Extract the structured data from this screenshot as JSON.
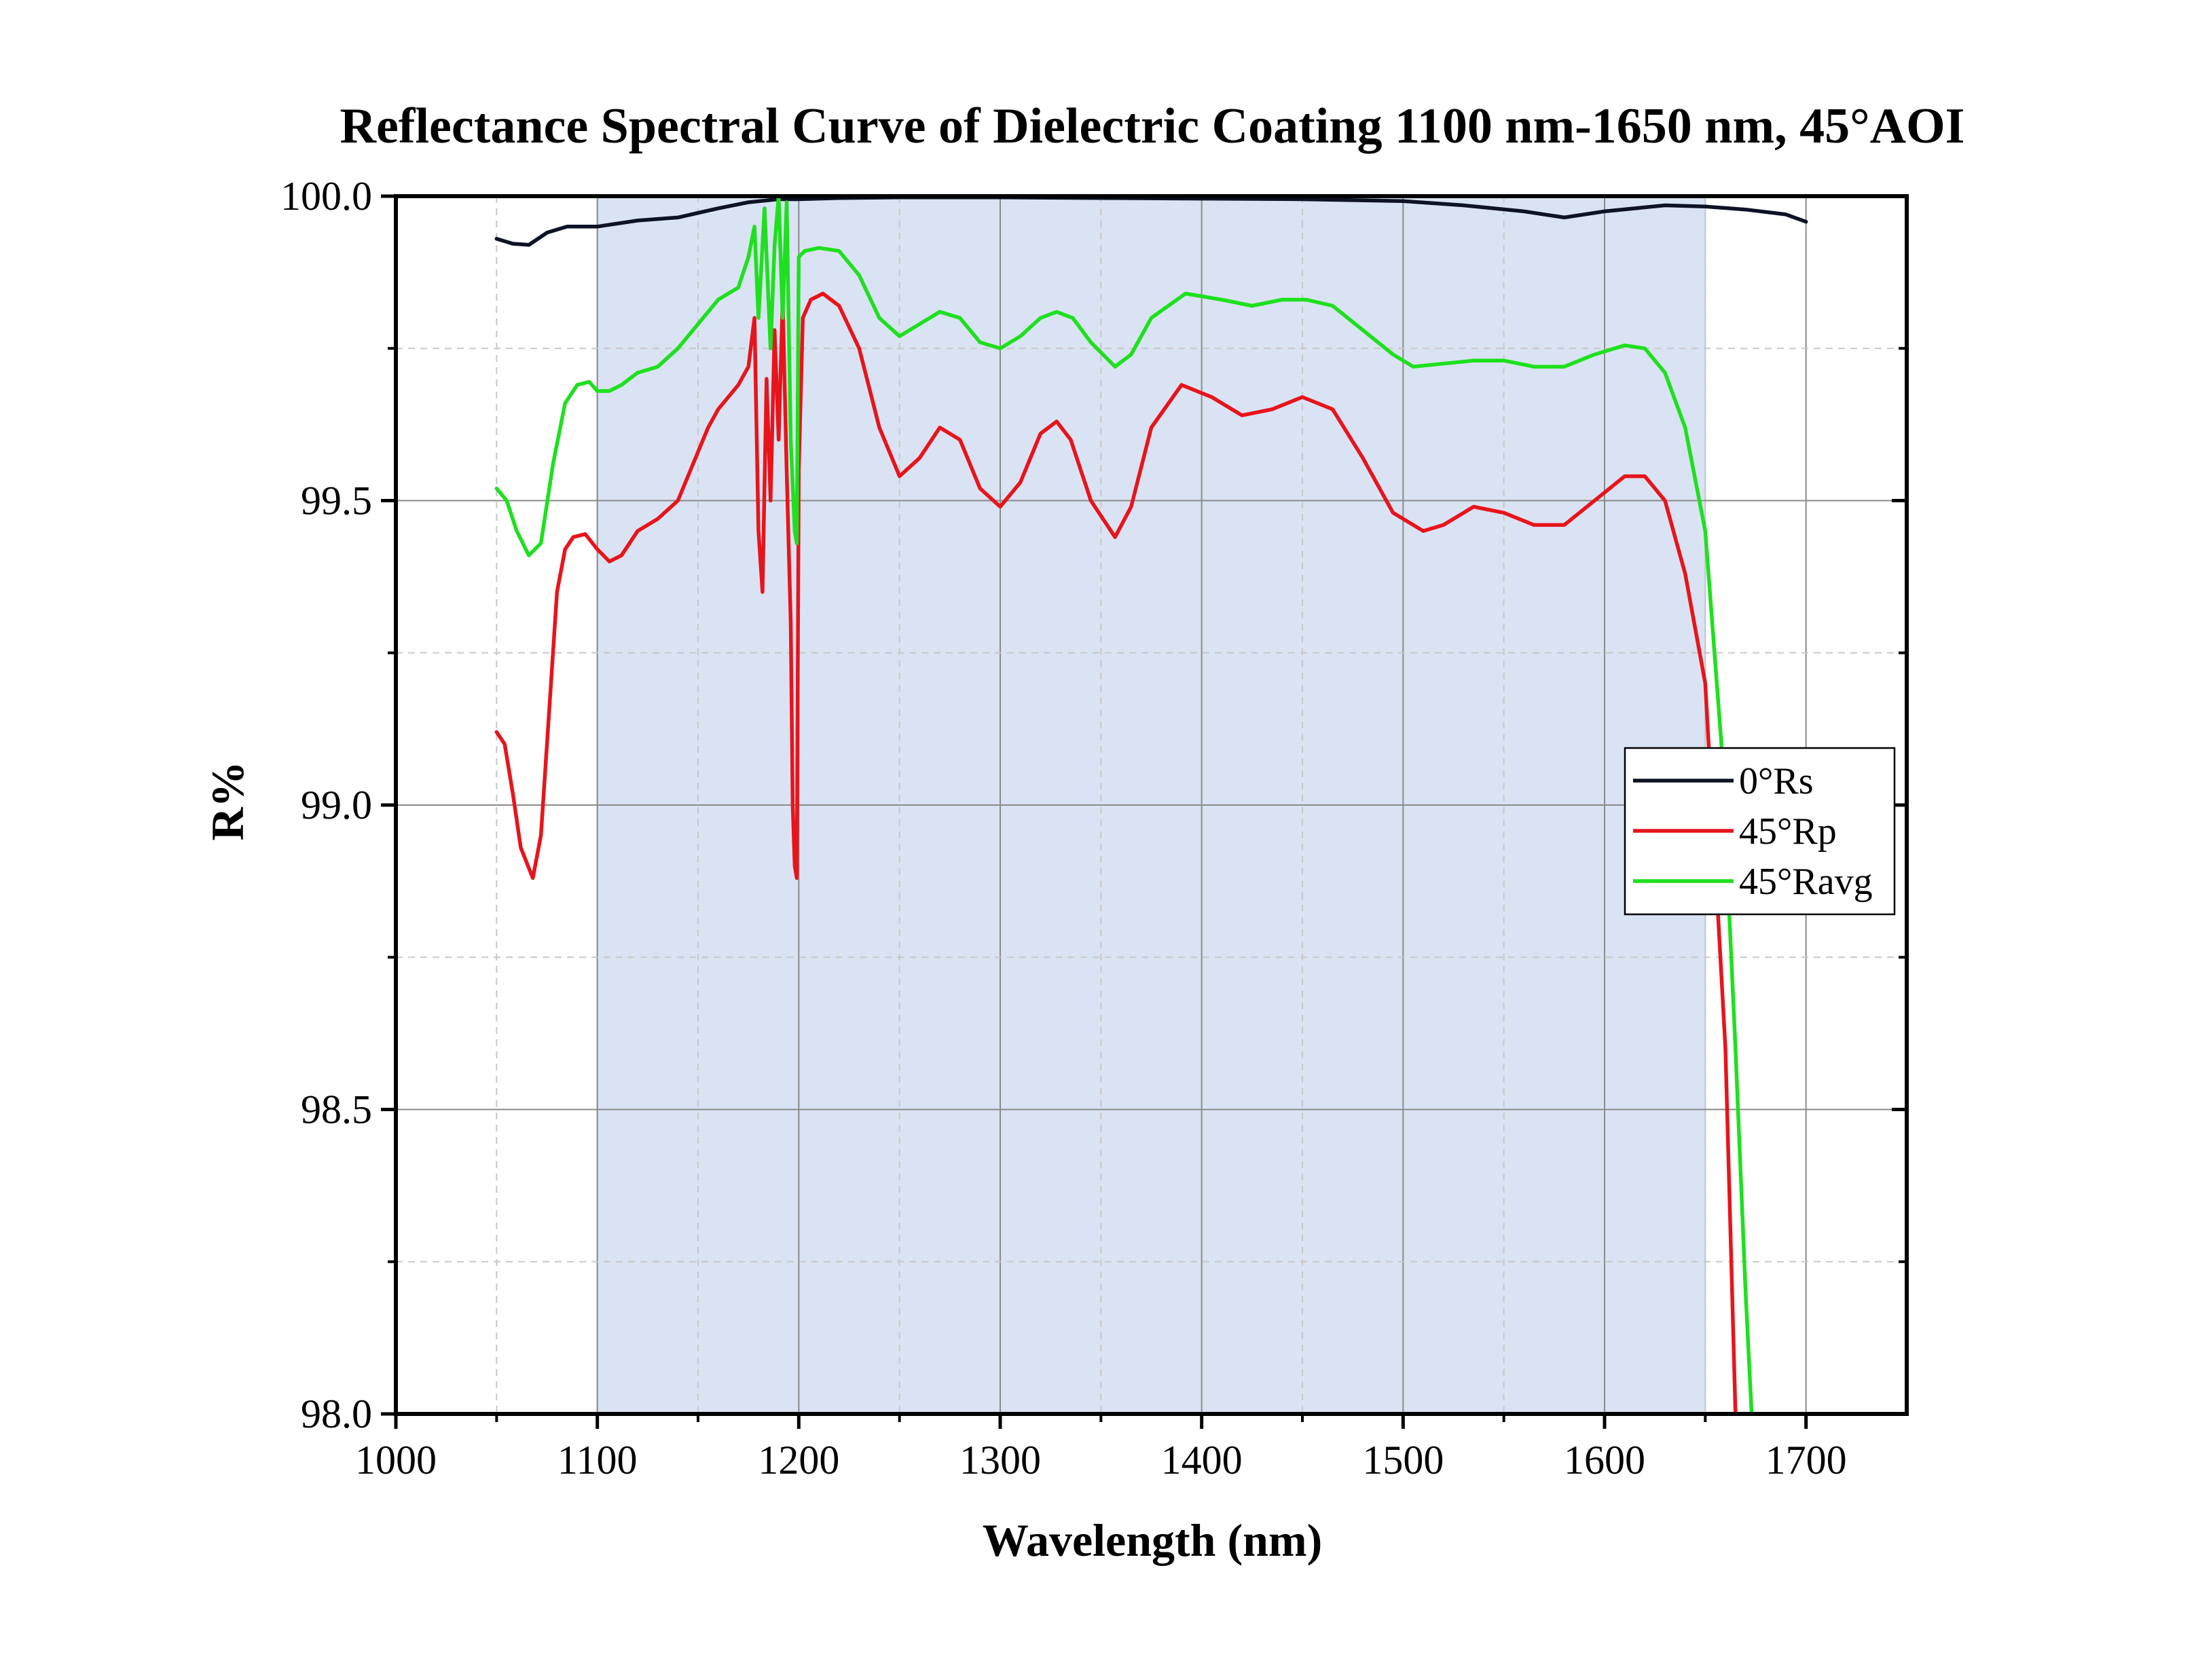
{
  "chart_data": {
    "type": "line",
    "title": "Reflectance Spectral Curve of Dielectric Coating 1100 nm-1650 nm,  45°AOI",
    "xlabel": "Wavelength (nm)",
    "ylabel": "R%",
    "xlim": [
      1000,
      1750
    ],
    "ylim": [
      98.0,
      100.0
    ],
    "x_ticks": [
      1000,
      1100,
      1200,
      1300,
      1400,
      1500,
      1600,
      1700
    ],
    "x_tick_labels": [
      "1000",
      "1100",
      "1200",
      "1300",
      "1400",
      "1500",
      "1600",
      "1700"
    ],
    "y_ticks": [
      98.0,
      98.5,
      99.0,
      99.5,
      100.0
    ],
    "y_tick_labels": [
      "98.0",
      "98.5",
      "99.0",
      "99.5",
      "100.0"
    ],
    "grid": true,
    "legend_position": "right",
    "shaded_band": {
      "x_start": 1100,
      "x_end": 1650,
      "color": "#dae3f3"
    },
    "series": [
      {
        "name": "0°Rs",
        "color": "#0d1224",
        "x": [
          1050,
          1058,
          1066,
          1075,
          1085,
          1100,
          1120,
          1140,
          1160,
          1175,
          1190,
          1200,
          1220,
          1250,
          1300,
          1350,
          1400,
          1450,
          1500,
          1530,
          1560,
          1580,
          1600,
          1630,
          1650,
          1670,
          1690,
          1700
        ],
        "y": [
          99.93,
          99.922,
          99.92,
          99.94,
          99.95,
          99.95,
          99.96,
          99.965,
          99.98,
          99.99,
          99.995,
          99.995,
          99.997,
          99.998,
          99.998,
          99.997,
          99.996,
          99.995,
          99.992,
          99.985,
          99.975,
          99.965,
          99.975,
          99.985,
          99.983,
          99.978,
          99.97,
          99.958
        ]
      },
      {
        "name": "45°Rp",
        "color": "#e8141b",
        "x": [
          1050,
          1054,
          1058,
          1062,
          1068,
          1072,
          1076,
          1080,
          1084,
          1088,
          1094,
          1100,
          1106,
          1112,
          1120,
          1130,
          1140,
          1150,
          1155,
          1160,
          1165,
          1170,
          1175,
          1178,
          1180,
          1182,
          1184,
          1186,
          1188,
          1190,
          1192,
          1194,
          1196,
          1197,
          1198,
          1199,
          1200,
          1202,
          1206,
          1212,
          1220,
          1230,
          1240,
          1250,
          1260,
          1270,
          1280,
          1290,
          1300,
          1310,
          1320,
          1328,
          1335,
          1345,
          1357,
          1365,
          1375,
          1390,
          1405,
          1420,
          1435,
          1450,
          1465,
          1480,
          1495,
          1510,
          1520,
          1535,
          1550,
          1565,
          1580,
          1595,
          1610,
          1620,
          1630,
          1640,
          1650,
          1660,
          1665
        ],
        "y": [
          99.12,
          99.1,
          99.02,
          98.93,
          98.88,
          98.95,
          99.15,
          99.35,
          99.42,
          99.44,
          99.445,
          99.42,
          99.4,
          99.41,
          99.45,
          99.47,
          99.5,
          99.58,
          99.62,
          99.65,
          99.67,
          99.69,
          99.72,
          99.8,
          99.45,
          99.35,
          99.7,
          99.5,
          99.78,
          99.6,
          99.83,
          99.55,
          99.3,
          99.0,
          98.9,
          98.88,
          99.55,
          99.8,
          99.83,
          99.84,
          99.82,
          99.75,
          99.62,
          99.54,
          99.57,
          99.62,
          99.6,
          99.52,
          99.49,
          99.53,
          99.61,
          99.63,
          99.6,
          99.5,
          99.44,
          99.49,
          99.62,
          99.69,
          99.67,
          99.64,
          99.65,
          99.67,
          99.65,
          99.57,
          99.48,
          99.45,
          99.46,
          99.49,
          99.48,
          99.46,
          99.46,
          99.5,
          99.54,
          99.54,
          99.5,
          99.38,
          99.2,
          98.6,
          98.0
        ]
      },
      {
        "name": "45°Ravg",
        "color": "#1ee01e",
        "x": [
          1050,
          1055,
          1060,
          1066,
          1072,
          1078,
          1084,
          1090,
          1096,
          1100,
          1106,
          1112,
          1120,
          1130,
          1140,
          1150,
          1160,
          1165,
          1170,
          1175,
          1178,
          1180,
          1183,
          1186,
          1188,
          1190,
          1192,
          1194,
          1196,
          1198,
          1199,
          1200,
          1203,
          1210,
          1220,
          1230,
          1240,
          1250,
          1260,
          1270,
          1280,
          1290,
          1300,
          1310,
          1320,
          1328,
          1336,
          1345,
          1357,
          1365,
          1375,
          1392,
          1410,
          1425,
          1440,
          1452,
          1465,
          1480,
          1495,
          1505,
          1520,
          1535,
          1550,
          1565,
          1580,
          1595,
          1610,
          1620,
          1630,
          1640,
          1650,
          1658,
          1665,
          1670,
          1673
        ],
        "y": [
          99.52,
          99.5,
          99.45,
          99.41,
          99.43,
          99.56,
          99.66,
          99.69,
          99.695,
          99.68,
          99.68,
          99.69,
          99.71,
          99.72,
          99.75,
          99.79,
          99.83,
          99.84,
          99.85,
          99.9,
          99.95,
          99.8,
          99.98,
          99.75,
          99.92,
          100.0,
          99.8,
          99.99,
          99.6,
          99.45,
          99.43,
          99.9,
          99.91,
          99.915,
          99.91,
          99.87,
          99.8,
          99.77,
          99.79,
          99.81,
          99.8,
          99.76,
          99.75,
          99.77,
          99.8,
          99.81,
          99.8,
          99.76,
          99.72,
          99.74,
          99.8,
          99.84,
          99.83,
          99.82,
          99.83,
          99.83,
          99.82,
          99.78,
          99.74,
          99.72,
          99.725,
          99.73,
          99.73,
          99.72,
          99.72,
          99.74,
          99.755,
          99.75,
          99.71,
          99.62,
          99.45,
          99.1,
          98.6,
          98.2,
          98.0
        ]
      }
    ]
  }
}
